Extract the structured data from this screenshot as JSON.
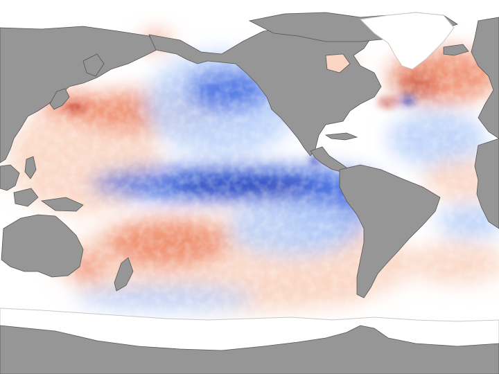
{
  "map": {
    "projection": "equirectangular",
    "centered_on": "Pacific Ocean",
    "anomaly_colors": {
      "cool_strong": "#0b1fa8",
      "cool": "#3a66e0",
      "cool_light": "#bcd3fa",
      "neutral": "#ffffff",
      "warm_light": "#fbd6c4",
      "warm": "#ef8a68",
      "warm_strong": "#b5180d"
    },
    "land_color": "#969696",
    "ice_color": "#ffffff",
    "coastline_color": "#555555",
    "features": [
      "cool-anomaly-equatorial-pacific",
      "warm-anomaly-north-pacific",
      "warm-anomaly-north-atlantic",
      "warm-anomaly-southwest-pacific"
    ]
  }
}
